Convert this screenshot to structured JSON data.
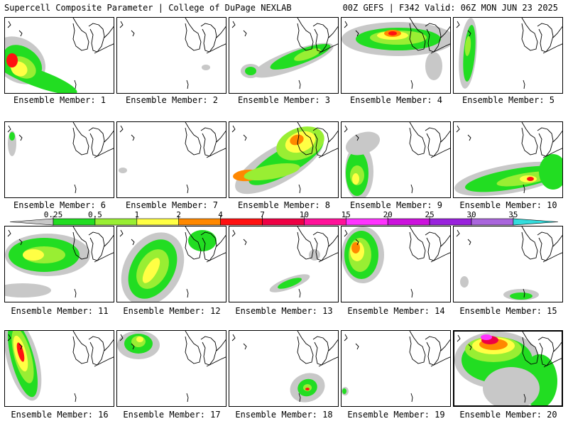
{
  "header": {
    "left": "Supercell Composite Parameter | College of DuPage NEXLAB",
    "right": "00Z GEFS | F342 Valid: 06Z MON JUN 23 2025"
  },
  "colorbar": {
    "labels": [
      "0.25",
      "0.5",
      "1",
      "2",
      "4",
      "7",
      "10",
      "15",
      "20",
      "25",
      "30",
      "35"
    ],
    "colors": [
      "#c8c8c8",
      "#22dd22",
      "#99ee33",
      "#ffff44",
      "#ff8800",
      "#ff1111",
      "#ee0044",
      "#ff1199",
      "#ff33ff",
      "#cc11dd",
      "#9922dd",
      "#aa66dd",
      "#33dddd"
    ]
  },
  "members": [
    {
      "caption": "Ensemble Member: 1",
      "level": "high"
    },
    {
      "caption": "Ensemble Member: 2",
      "level": "minimal"
    },
    {
      "caption": "Ensemble Member: 3",
      "level": "moderate"
    },
    {
      "caption": "Ensemble Member: 4",
      "level": "high"
    },
    {
      "caption": "Ensemble Member: 5",
      "level": "moderate"
    },
    {
      "caption": "Ensemble Member: 6",
      "level": "minimal"
    },
    {
      "caption": "Ensemble Member: 7",
      "level": "minimal"
    },
    {
      "caption": "Ensemble Member: 8",
      "level": "high"
    },
    {
      "caption": "Ensemble Member: 9",
      "level": "moderate"
    },
    {
      "caption": "Ensemble Member: 10",
      "level": "moderate"
    },
    {
      "caption": "Ensemble Member: 11",
      "level": "moderate"
    },
    {
      "caption": "Ensemble Member: 12",
      "level": "moderate"
    },
    {
      "caption": "Ensemble Member: 13",
      "level": "minimal"
    },
    {
      "caption": "Ensemble Member: 14",
      "level": "high"
    },
    {
      "caption": "Ensemble Member: 15",
      "level": "minimal"
    },
    {
      "caption": "Ensemble Member: 16",
      "level": "high"
    },
    {
      "caption": "Ensemble Member: 17",
      "level": "moderate"
    },
    {
      "caption": "Ensemble Member: 18",
      "level": "minimal"
    },
    {
      "caption": "Ensemble Member: 19",
      "level": "minimal"
    },
    {
      "caption": "Ensemble Member: 20",
      "level": "very-high"
    }
  ]
}
